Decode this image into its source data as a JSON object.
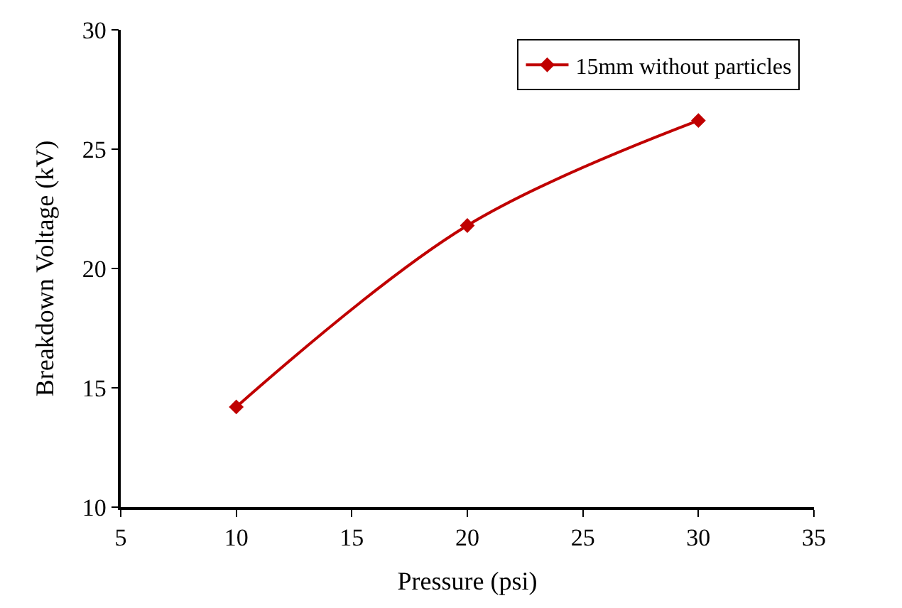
{
  "chart_data": {
    "type": "line",
    "xlabel": "Pressure (psi)",
    "ylabel": "Breakdown Voltage (kV)",
    "x": [
      10,
      20,
      30
    ],
    "series": [
      {
        "name": "15mm without particles",
        "color": "#c00000",
        "values": [
          14.2,
          21.8,
          26.2
        ]
      }
    ],
    "xlim": [
      5,
      35
    ],
    "xticks": [
      5,
      10,
      15,
      20,
      25,
      30,
      35
    ],
    "ylim": [
      10,
      30
    ],
    "yticks": [
      10,
      15,
      20,
      25,
      30
    ],
    "legend": "top right",
    "marker": "diamond",
    "line_style": "solid"
  }
}
